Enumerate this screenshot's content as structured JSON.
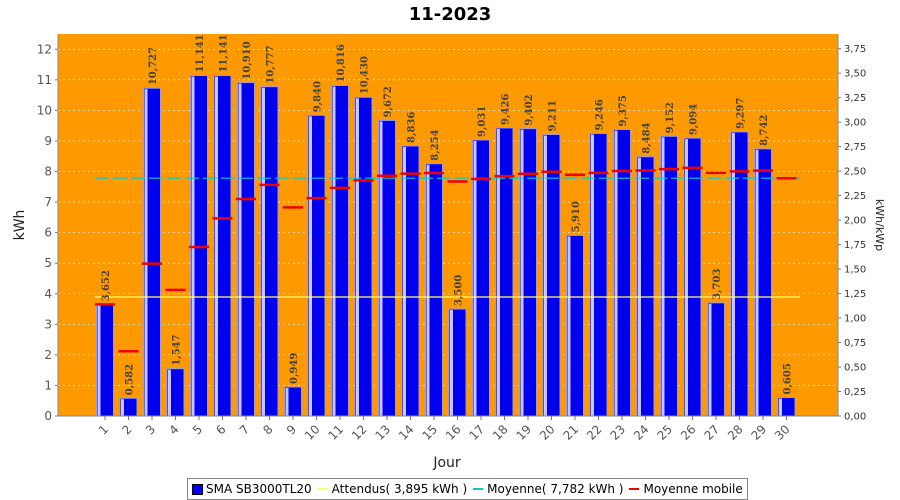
{
  "chart_data": {
    "type": "bar",
    "title": "11-2023",
    "xlabel": "Jour",
    "ylabel": "kWh",
    "ylabel_right": "kWh/kWp",
    "categories": [
      "1",
      "2",
      "3",
      "4",
      "5",
      "6",
      "7",
      "8",
      "9",
      "10",
      "11",
      "12",
      "13",
      "14",
      "15",
      "16",
      "17",
      "18",
      "19",
      "20",
      "21",
      "22",
      "23",
      "24",
      "25",
      "26",
      "27",
      "28",
      "29",
      "30"
    ],
    "ylim": [
      0,
      12.5
    ],
    "yticks": [
      "0",
      "1",
      "2",
      "3",
      "4",
      "5",
      "6",
      "7",
      "8",
      "9",
      "10",
      "11",
      "12"
    ],
    "ylim_right": [
      0,
      3.9
    ],
    "yticks_right": [
      "0,00",
      "0,25",
      "0,50",
      "0,75",
      "1,00",
      "1,25",
      "1,50",
      "1,75",
      "2,00",
      "2,25",
      "2,50",
      "2,75",
      "3,00",
      "3,25",
      "3,50",
      "3,75"
    ],
    "series": [
      {
        "name": "SMA SB3000TL20",
        "type": "bar",
        "color": "#0000ee",
        "values": [
          3.652,
          0.582,
          10.727,
          1.547,
          11.141,
          11.141,
          10.91,
          10.777,
          0.949,
          9.84,
          10.816,
          10.43,
          9.672,
          8.836,
          8.254,
          3.5,
          9.031,
          9.426,
          9.402,
          9.211,
          5.91,
          9.246,
          9.375,
          8.484,
          9.152,
          9.094,
          3.703,
          9.297,
          8.742,
          0.605
        ],
        "labels": [
          "3,652",
          "0,582",
          "10,727",
          "1,547",
          "11,141",
          "11,141",
          "10,910",
          "10,777",
          "0,949",
          "9,840",
          "10,816",
          "10,430",
          "9,672",
          "8,836",
          "8,254",
          "3,500",
          "9,031",
          "9,426",
          "9,402",
          "9,211",
          "5,910",
          "9,246",
          "9,375",
          "8,484",
          "9,152",
          "9,094",
          "3,703",
          "9,297",
          "8,742",
          "0,605"
        ]
      },
      {
        "name": "Attendus( 3,895 kWh )",
        "type": "line",
        "color": "#ffff66",
        "value": 3.895
      },
      {
        "name": "Moyenne( 7,782 kWh )",
        "type": "line",
        "color": "#00cccc",
        "value": 7.782
      },
      {
        "name": "Moyenne mobile",
        "type": "step",
        "color": "#ee0000",
        "values": [
          3.652,
          2.117,
          4.987,
          4.127,
          5.532,
          6.467,
          7.102,
          7.562,
          6.827,
          7.128,
          7.463,
          7.71,
          7.861,
          7.931,
          7.953,
          7.675,
          7.755,
          7.848,
          7.929,
          7.992,
          7.892,
          7.954,
          8.016,
          8.035,
          8.08,
          8.119,
          7.955,
          8.003,
          8.028,
          7.78
        ]
      }
    ],
    "plot_background": "#ff9900",
    "grid": true,
    "legend_position": "bottom"
  },
  "legend": {
    "items": [
      {
        "label": "SMA SB3000TL20",
        "color": "#0000ee",
        "kind": "box"
      },
      {
        "label": "Attendus( 3,895 kWh )",
        "color": "#ffff66",
        "kind": "line"
      },
      {
        "label": "Moyenne( 7,782 kWh )",
        "color": "#00cccc",
        "kind": "line"
      },
      {
        "label": "Moyenne mobile",
        "color": "#ee0000",
        "kind": "line"
      }
    ]
  }
}
